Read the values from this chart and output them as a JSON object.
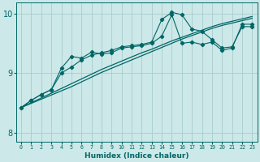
{
  "bg_color": "#cce8e8",
  "grid_color": "#aacccc",
  "line_color": "#006666",
  "xlabel": "Humidex (Indice chaleur)",
  "xlim": [
    -0.5,
    23.5
  ],
  "ylim": [
    7.85,
    10.18
  ],
  "yticks": [
    8,
    9,
    10
  ],
  "xticks": [
    0,
    1,
    2,
    3,
    4,
    5,
    6,
    7,
    8,
    9,
    10,
    11,
    12,
    13,
    14,
    15,
    16,
    17,
    18,
    19,
    20,
    21,
    22,
    23
  ],
  "line_jagged1_x": [
    0,
    1,
    2,
    3,
    4,
    5,
    6,
    7,
    8,
    9,
    10,
    11,
    12,
    13,
    14,
    15,
    16,
    17,
    18,
    19,
    20,
    21,
    22,
    23
  ],
  "line_jagged1_y": [
    8.42,
    8.54,
    8.64,
    8.72,
    9.08,
    9.28,
    9.25,
    9.35,
    9.32,
    9.34,
    9.42,
    9.44,
    9.46,
    9.5,
    9.62,
    9.98,
    9.5,
    9.52,
    9.48,
    9.52,
    9.38,
    9.42,
    9.82,
    9.82
  ],
  "line_jagged2_x": [
    0,
    1,
    2,
    3,
    4,
    5,
    6,
    7,
    8,
    9,
    10,
    11,
    12,
    13,
    14,
    15,
    16,
    17,
    18,
    19,
    20,
    21,
    22,
    23
  ],
  "line_jagged2_y": [
    8.42,
    8.54,
    8.64,
    8.72,
    9.0,
    9.1,
    9.22,
    9.3,
    9.34,
    9.38,
    9.44,
    9.46,
    9.48,
    9.52,
    9.9,
    10.02,
    9.98,
    9.74,
    9.7,
    9.56,
    9.42,
    9.44,
    9.78,
    9.78
  ],
  "line_smooth1_x": [
    0,
    1,
    2,
    3,
    4,
    5,
    6,
    7,
    8,
    9,
    10,
    11,
    12,
    13,
    14,
    15,
    16,
    17,
    18,
    19,
    20,
    21,
    22,
    23
  ],
  "line_smooth1_y": [
    8.42,
    8.5,
    8.58,
    8.66,
    8.74,
    8.82,
    8.9,
    8.98,
    9.06,
    9.13,
    9.2,
    9.27,
    9.34,
    9.4,
    9.47,
    9.54,
    9.6,
    9.66,
    9.72,
    9.78,
    9.83,
    9.87,
    9.91,
    9.95
  ],
  "line_smooth2_x": [
    0,
    1,
    2,
    3,
    4,
    5,
    6,
    7,
    8,
    9,
    10,
    11,
    12,
    13,
    14,
    15,
    16,
    17,
    18,
    19,
    20,
    21,
    22,
    23
  ],
  "line_smooth2_y": [
    8.42,
    8.49,
    8.56,
    8.63,
    8.7,
    8.77,
    8.85,
    8.93,
    9.01,
    9.08,
    9.15,
    9.22,
    9.29,
    9.36,
    9.43,
    9.5,
    9.57,
    9.63,
    9.69,
    9.75,
    9.8,
    9.84,
    9.88,
    9.92
  ]
}
